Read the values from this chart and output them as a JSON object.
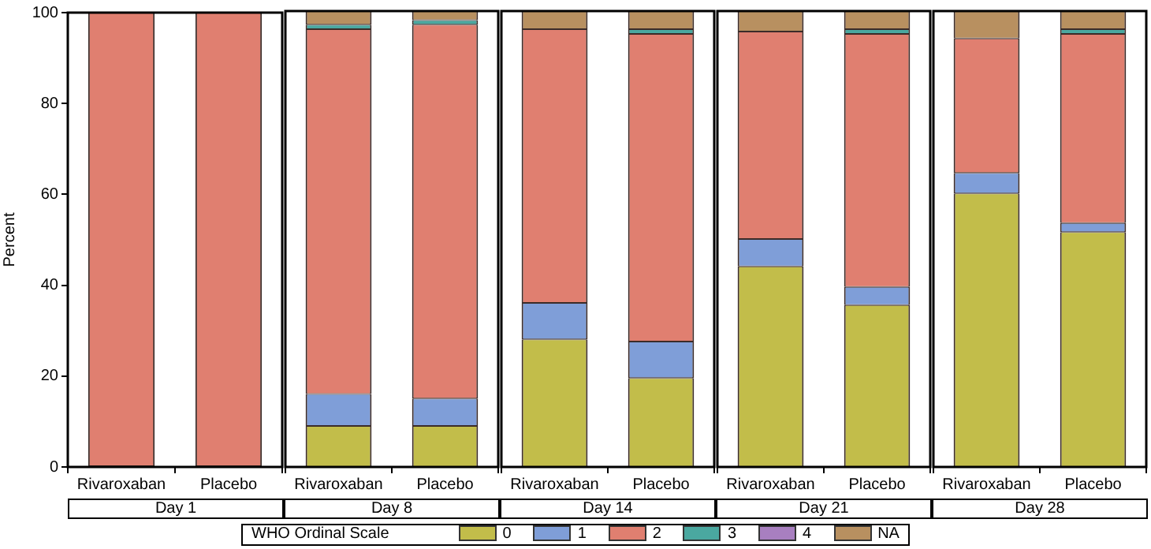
{
  "chart_data": [
    {
      "type": "bar",
      "stacked": true,
      "xlabel": "Day 1",
      "ylabel": "Percent",
      "categories": [
        "Rivaroxaban",
        "Placebo"
      ],
      "ylim": [
        0,
        100
      ],
      "yticks": [
        0,
        20,
        40,
        60,
        80,
        100
      ],
      "legend": "bottom",
      "legend_title": "WHO Ordinal Scale",
      "series": [
        {
          "name": "0",
          "color": "#c2bd4a",
          "values": [
            0,
            0
          ]
        },
        {
          "name": "1",
          "color": "#7f9ed8",
          "values": [
            0,
            0
          ]
        },
        {
          "name": "2",
          "color": "#e07f70",
          "values": [
            100,
            100
          ]
        },
        {
          "name": "3",
          "color": "#4aa8a0",
          "values": [
            0,
            0
          ]
        },
        {
          "name": "4",
          "color": "#a87fc0",
          "values": [
            0,
            0
          ]
        },
        {
          "name": "NA",
          "color": "#b89060",
          "values": [
            0,
            0
          ]
        }
      ]
    },
    {
      "type": "bar",
      "stacked": true,
      "xlabel": "Day 8",
      "categories": [
        "Rivaroxaban",
        "Placebo"
      ],
      "ylim": [
        0,
        100
      ],
      "tick_labels": "x",
      "series": [
        {
          "color": "#c2bd4a",
          "values": [
            9,
            9
          ]
        },
        {
          "color": "#7f9ed8",
          "values": [
            7,
            6
          ]
        },
        {
          "color": "#e07f70",
          "values": [
            80,
            82
          ]
        },
        {
          "color": "#4aa8a0",
          "values": [
            1,
            1
          ]
        },
        {
          "color": "#a87fc0",
          "values": [
            0,
            0
          ]
        },
        {
          "color": "#b89060",
          "values": [
            3,
            2
          ]
        }
      ]
    },
    {
      "type": "bar",
      "stacked": true,
      "xlabel": "Day 14",
      "categories": [
        "Rivaroxaban",
        "Placebo"
      ],
      "ylim": [
        0,
        100
      ],
      "tick_labels": "x",
      "series": [
        {
          "color": "#c2bd4a",
          "values": [
            28,
            19.5
          ]
        },
        {
          "color": "#7f9ed8",
          "values": [
            8,
            8
          ]
        },
        {
          "color": "#e07f70",
          "values": [
            60,
            67.5
          ]
        },
        {
          "color": "#4aa8a0",
          "values": [
            0,
            1
          ]
        },
        {
          "color": "#a87fc0",
          "values": [
            0,
            0
          ]
        },
        {
          "color": "#b89060",
          "values": [
            4,
            4
          ]
        }
      ]
    },
    {
      "type": "bar",
      "stacked": true,
      "xlabel": "Day 21",
      "categories": [
        "Rivaroxaban",
        "Placebo"
      ],
      "ylim": [
        0,
        100
      ],
      "tick_labels": "x",
      "series": [
        {
          "color": "#c2bd4a",
          "values": [
            44,
            35.5
          ]
        },
        {
          "color": "#7f9ed8",
          "values": [
            6,
            4
          ]
        },
        {
          "color": "#e07f70",
          "values": [
            45.5,
            55.5
          ]
        },
        {
          "color": "#4aa8a0",
          "values": [
            0,
            1
          ]
        },
        {
          "color": "#a87fc0",
          "values": [
            0,
            0
          ]
        },
        {
          "color": "#b89060",
          "values": [
            4.5,
            4
          ]
        }
      ]
    },
    {
      "type": "bar",
      "stacked": true,
      "xlabel": "Day 28",
      "categories": [
        "Rivaroxaban",
        "Placebo"
      ],
      "ylim": [
        0,
        100
      ],
      "tick_labels": "x",
      "series": [
        {
          "color": "#c2bd4a",
          "values": [
            60,
            51.5
          ]
        },
        {
          "color": "#7f9ed8",
          "values": [
            4.5,
            2
          ]
        },
        {
          "color": "#e07f70",
          "values": [
            29.5,
            41.5
          ]
        },
        {
          "color": "#4aa8a0",
          "values": [
            0,
            1
          ]
        },
        {
          "color": "#a87fc0",
          "values": [
            0,
            0
          ]
        },
        {
          "color": "#b89060",
          "values": [
            6,
            4
          ]
        }
      ]
    }
  ]
}
